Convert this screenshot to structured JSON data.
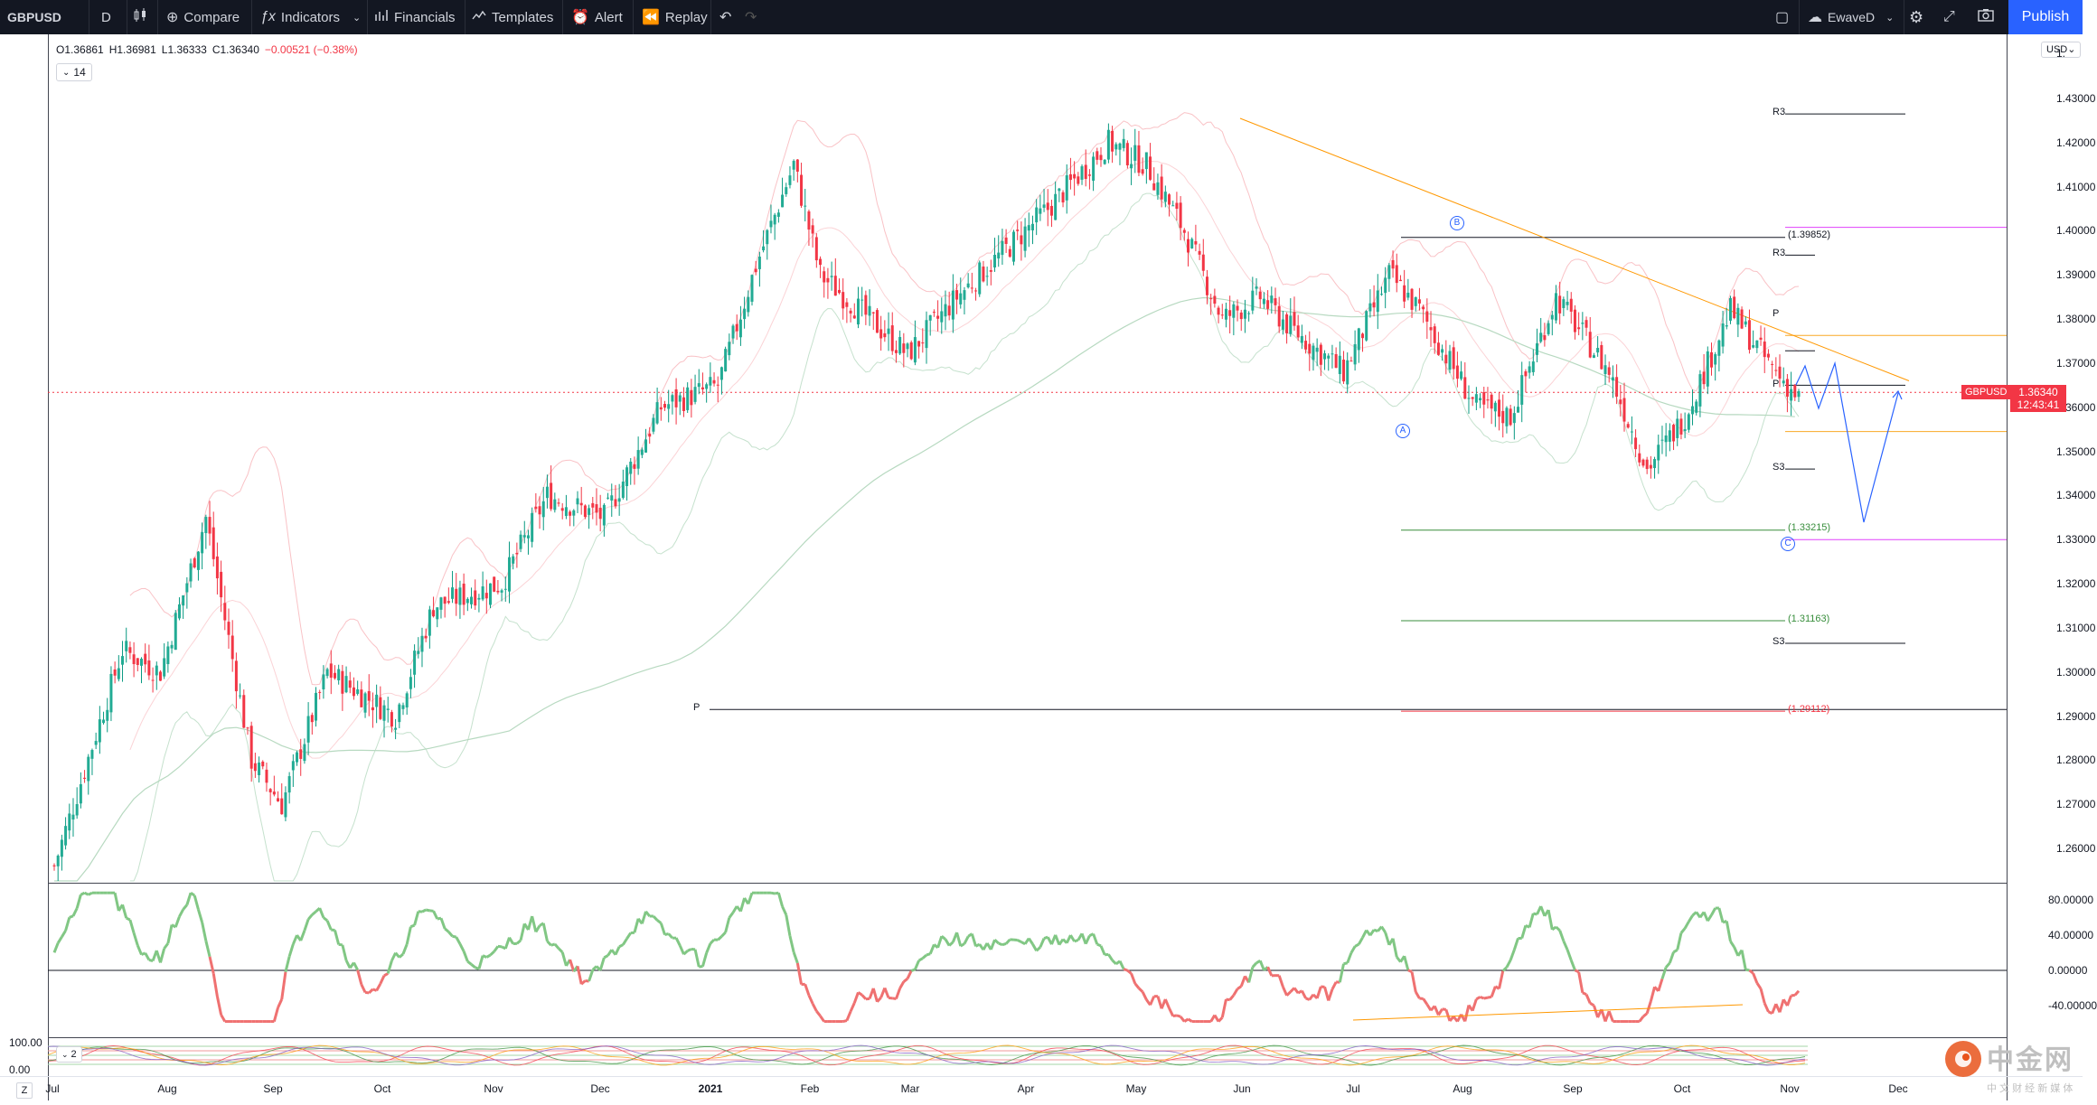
{
  "toolbar": {
    "symbol": "GBPUSD",
    "interval": "D",
    "compare": "Compare",
    "indicators": "Indicators",
    "financials": "Financials",
    "templates": "Templates",
    "alert": "Alert",
    "replay": "Replay",
    "layout_name": "EwaveD",
    "publish": "Publish"
  },
  "legend": {
    "open": "O1.36861",
    "high": "H1.36981",
    "low": "L1.36333",
    "close": "C1.36340",
    "change": "−0.00521 (−0.38%)",
    "length": "14"
  },
  "price_axis": {
    "currency": "USD",
    "top_partial": "1.",
    "labels": [
      "1.43000",
      "1.42000",
      "1.41000",
      "1.40000",
      "1.39000",
      "1.38000",
      "1.37000",
      "1.36000",
      "1.35000",
      "1.34000",
      "1.33000",
      "1.32000",
      "1.31000",
      "1.30000",
      "1.29000",
      "1.28000",
      "1.27000",
      "1.26000"
    ],
    "current_symbol": "GBPUSD",
    "current_price": "1.36340",
    "countdown": "12:43:41"
  },
  "osc_axis": {
    "labels": [
      "80.00000",
      "40.00000",
      "0.00000",
      "-40.00000"
    ]
  },
  "pane2": {
    "labels": [
      "100.00",
      "0.00"
    ],
    "badge": "2"
  },
  "time_axis": {
    "months": [
      "Jul",
      "Aug",
      "Sep",
      "Oct",
      "Nov",
      "Dec",
      "2021",
      "Feb",
      "Mar",
      "Apr",
      "May",
      "Jun",
      "Jul",
      "Aug",
      "Sep",
      "Oct",
      "Nov",
      "Dec"
    ],
    "z_label": "Z"
  },
  "pivots": {
    "r3_top": "R3",
    "r3_mid": "R3",
    "p_short": "P",
    "p_cur": "P",
    "s3_mid": "S3",
    "s3_low": "S3",
    "p_long": "P"
  },
  "fibs": {
    "f1": "(1.39852)",
    "f2": "(1.33215)",
    "f3": "(1.31163)",
    "f4": "(1.29112)"
  },
  "waves": {
    "a": "A",
    "b": "B",
    "c": "C"
  },
  "watermark": {
    "brand": "中金网",
    "sub": "中 文 财 经 新 媒 体"
  },
  "colors": {
    "up": "#22ab94",
    "down": "#f23645",
    "accent": "#2962ff"
  }
}
